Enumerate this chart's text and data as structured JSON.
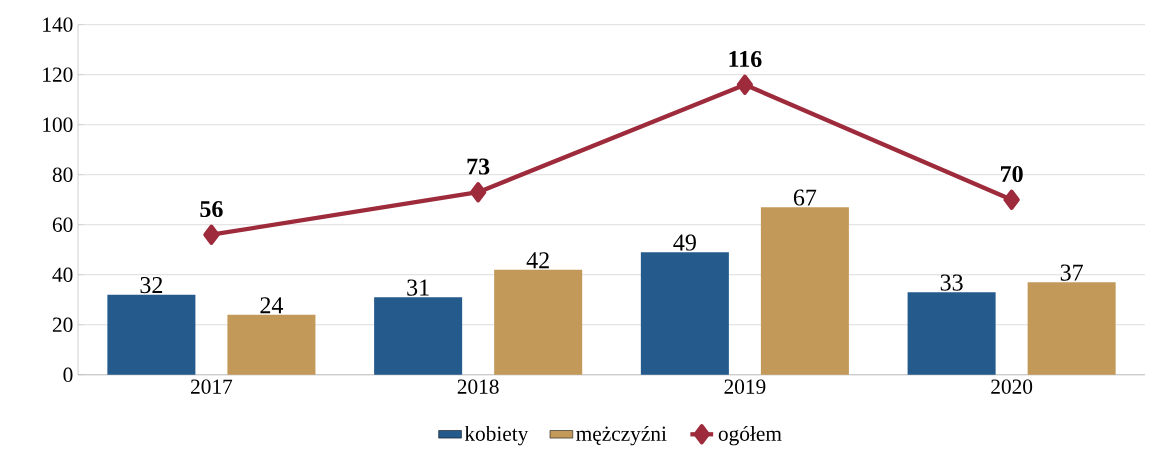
{
  "chart_data": {
    "type": "bar",
    "categories": [
      "2017",
      "2018",
      "2019",
      "2020"
    ],
    "series": [
      {
        "name": "kobiety",
        "color": "#245a8c",
        "values": [
          32,
          31,
          49,
          33
        ]
      },
      {
        "name": "mężczyźni",
        "color": "#c3995a",
        "values": [
          24,
          42,
          67,
          37
        ]
      },
      {
        "name": "ogółem",
        "type": "line",
        "color": "#9e2b3b",
        "marker": "diamond",
        "values": [
          56,
          73,
          116,
          70
        ]
      }
    ],
    "ylim": [
      0,
      140
    ],
    "yticks": [
      0,
      20,
      40,
      60,
      80,
      100,
      120,
      140
    ],
    "grid": "y",
    "legend": "bottom",
    "data_labels": true
  }
}
